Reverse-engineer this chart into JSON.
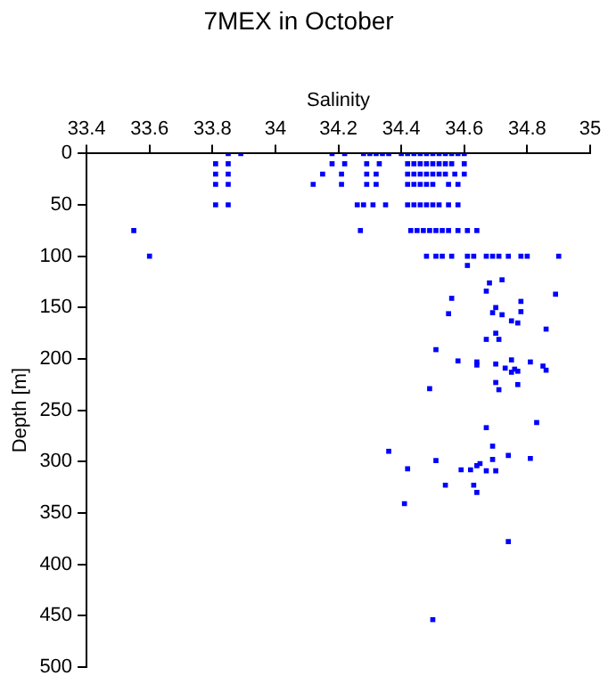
{
  "chart_data": {
    "type": "scatter",
    "title": "7MEX in October",
    "xlabel": "Salinity",
    "ylabel": "Depth [m]",
    "xlim": [
      33.4,
      35
    ],
    "xticks": [
      33.4,
      33.6,
      33.8,
      34,
      34.2,
      34.4,
      34.6,
      34.8,
      35
    ],
    "ylim": [
      500,
      0
    ],
    "yticks": [
      0,
      50,
      100,
      150,
      200,
      250,
      300,
      350,
      400,
      450,
      500
    ],
    "grid": false,
    "legend": false,
    "marker": "square",
    "series": [
      {
        "color": "#0000ff",
        "x": [
          33.85,
          33.89,
          34.18,
          34.22,
          34.28,
          34.3,
          34.32,
          34.34,
          34.36,
          34.4,
          34.42,
          34.44,
          34.46,
          34.48,
          34.5,
          34.52,
          34.54,
          34.56,
          34.58,
          34.6,
          33.81,
          33.85,
          34.18,
          34.22,
          34.29,
          34.33,
          34.42,
          34.44,
          34.46,
          34.48,
          34.5,
          34.52,
          34.54,
          34.56,
          34.6,
          33.81,
          33.85,
          34.15,
          34.21,
          34.29,
          34.32,
          34.42,
          34.44,
          34.46,
          34.48,
          34.5,
          34.52,
          34.54,
          34.57,
          34.6,
          33.81,
          33.85,
          34.12,
          34.21,
          34.29,
          34.32,
          34.42,
          34.44,
          34.46,
          34.48,
          34.5,
          34.55,
          34.58,
          33.81,
          33.85,
          34.26,
          34.28,
          34.31,
          34.35,
          34.42,
          34.44,
          34.46,
          34.48,
          34.5,
          34.52,
          34.55,
          34.58,
          33.55,
          34.27,
          34.43,
          34.45,
          34.47,
          34.49,
          34.51,
          34.53,
          34.55,
          34.58,
          34.61,
          34.64,
          33.6,
          34.48,
          34.51,
          34.53,
          34.56,
          34.61,
          34.63,
          34.67,
          34.69,
          34.71,
          34.74,
          34.78,
          34.8,
          34.9,
          34.61,
          34.68,
          34.72,
          34.67,
          34.56,
          34.78,
          34.89,
          34.7,
          34.69,
          34.72,
          34.55,
          34.78,
          34.75,
          34.77,
          34.86,
          34.7,
          34.67,
          34.71,
          34.51,
          34.58,
          34.64,
          34.64,
          34.7,
          34.75,
          34.81,
          34.85,
          34.86,
          34.73,
          34.76,
          34.75,
          34.77,
          34.49,
          34.71,
          34.77,
          34.7,
          34.67,
          34.83,
          34.69,
          34.36,
          34.51,
          34.42,
          34.59,
          34.62,
          34.64,
          34.65,
          34.69,
          34.74,
          34.81,
          34.67,
          34.7,
          34.54,
          34.63,
          34.64,
          34.41,
          34.74,
          34.5
        ],
        "values": [
          0,
          0,
          0,
          0,
          0,
          0,
          0,
          0,
          0,
          0,
          0,
          0,
          0,
          0,
          0,
          0,
          0,
          0,
          0,
          0,
          10,
          10,
          10,
          10,
          10,
          10,
          10,
          10,
          10,
          10,
          10,
          10,
          10,
          10,
          10,
          20,
          20,
          20,
          20,
          20,
          20,
          20,
          20,
          20,
          20,
          20,
          20,
          20,
          20,
          20,
          30,
          30,
          30,
          30,
          30,
          30,
          30,
          30,
          30,
          30,
          30,
          30,
          30,
          50,
          50,
          50,
          50,
          50,
          50,
          50,
          50,
          50,
          50,
          50,
          50,
          50,
          50,
          75,
          75,
          75,
          75,
          75,
          75,
          75,
          75,
          75,
          75,
          75,
          75,
          100,
          100,
          100,
          100,
          100,
          100,
          100,
          100,
          100,
          100,
          100,
          100,
          100,
          100,
          109,
          126,
          123,
          134,
          141,
          144,
          137,
          150,
          155,
          157,
          156,
          154,
          163,
          165,
          171,
          175,
          181,
          181,
          191,
          202,
          203,
          206,
          205,
          201,
          203,
          207,
          211,
          209,
          210,
          213,
          212,
          229,
          230,
          225,
          223,
          267,
          262,
          285,
          290,
          299,
          307,
          308,
          308,
          304,
          302,
          298,
          294,
          297,
          309,
          309,
          323,
          323,
          330,
          341,
          378,
          454
        ]
      }
    ]
  }
}
